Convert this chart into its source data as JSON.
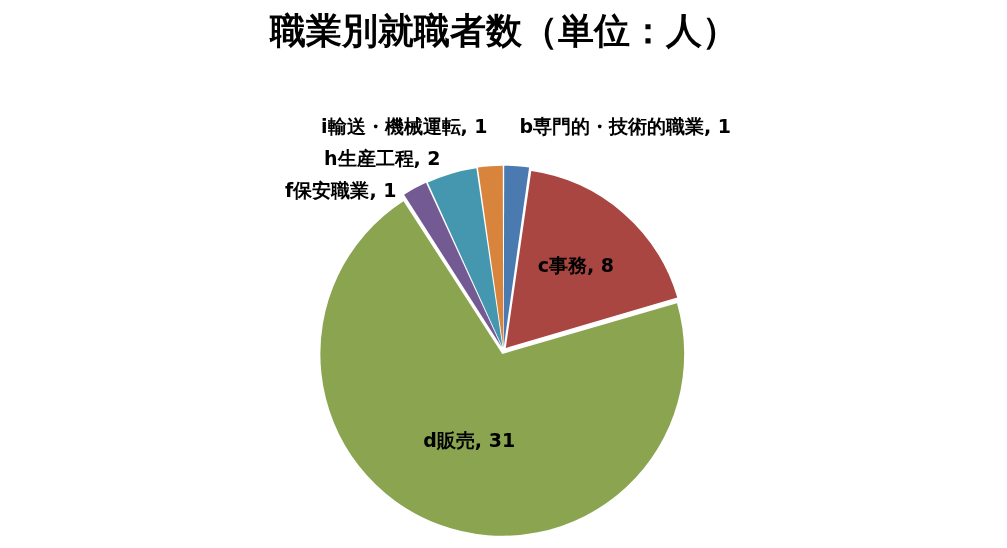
{
  "chart_data": {
    "type": "pie",
    "title": "職業別就職者数（単位：人）",
    "categories": [
      "b専門的・技術的職業",
      "c事務",
      "d販売",
      "f保安職業",
      "h生産工程",
      "i輸送・機械運転"
    ],
    "values": [
      1,
      8,
      31,
      1,
      2,
      1
    ],
    "value_labels": [
      ", 1",
      ", 8",
      ", 31",
      ", 1",
      ", 2",
      ", 1"
    ],
    "colors": [
      "#4a7ab0",
      "#aa4642",
      "#8aa450",
      "#735a93",
      "#4497ae",
      "#d9843c"
    ],
    "legend": false
  }
}
